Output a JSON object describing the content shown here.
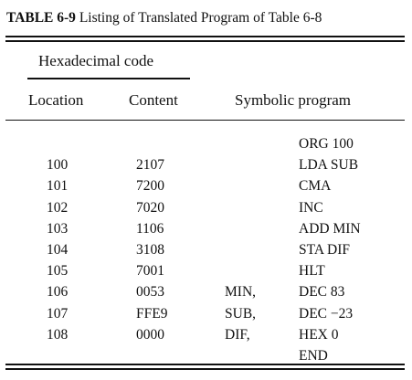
{
  "caption": {
    "label": "TABLE 6-9",
    "title": "Listing of Translated Program of Table 6-8"
  },
  "headers": {
    "group": "Hexadecimal code",
    "location": "Location",
    "content": "Content",
    "symbolic": "Symbolic program"
  },
  "rows": [
    {
      "location": "",
      "content": "",
      "label": "",
      "symbolic": "ORG 100"
    },
    {
      "location": "100",
      "content": "2107",
      "label": "",
      "symbolic": "LDA SUB"
    },
    {
      "location": "101",
      "content": "7200",
      "label": "",
      "symbolic": "CMA"
    },
    {
      "location": "102",
      "content": "7020",
      "label": "",
      "symbolic": "INC"
    },
    {
      "location": "103",
      "content": "1106",
      "label": "",
      "symbolic": "ADD MIN"
    },
    {
      "location": "104",
      "content": "3108",
      "label": "",
      "symbolic": "STA DIF"
    },
    {
      "location": "105",
      "content": "7001",
      "label": "",
      "symbolic": "HLT"
    },
    {
      "location": "106",
      "content": "0053",
      "label": "MIN,",
      "symbolic": "DEC 83"
    },
    {
      "location": "107",
      "content": "FFE9",
      "label": "SUB,",
      "symbolic": "DEC −23"
    },
    {
      "location": "108",
      "content": "0000",
      "label": "DIF,",
      "symbolic": "HEX 0"
    },
    {
      "location": "",
      "content": "",
      "label": "",
      "symbolic": "END"
    }
  ]
}
